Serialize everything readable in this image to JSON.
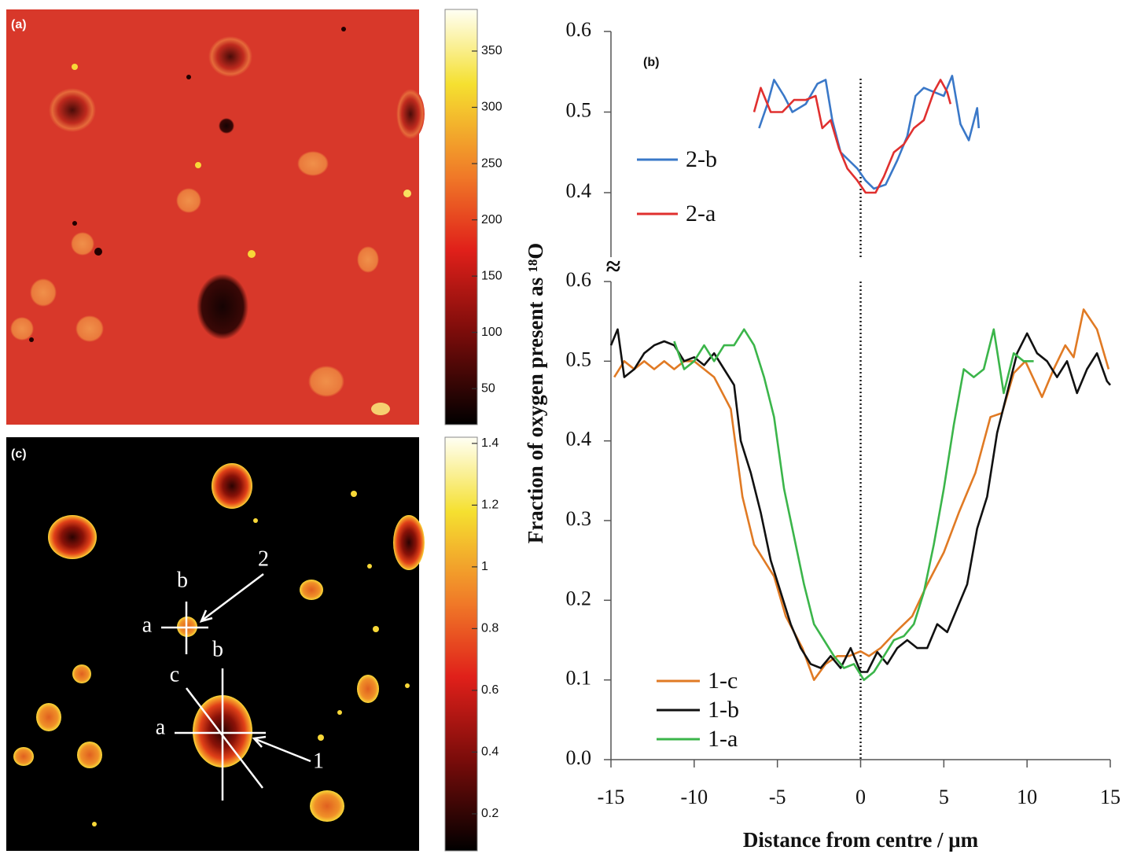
{
  "chart_data": [
    {
      "type": "image",
      "panel_label": "(a)",
      "colorbar": {
        "clim": [
          18,
          387
        ],
        "ticks": [
          50,
          100,
          150,
          200,
          250,
          300,
          350
        ]
      }
    },
    {
      "type": "image",
      "panel_label": "(c)",
      "colorbar": {
        "clim": [
          0.08,
          1.42
        ],
        "ticks": [
          0.2,
          0.4,
          0.6,
          0.8,
          1,
          1.2,
          1.4
        ]
      },
      "annotations": [
        "b",
        "2",
        "a",
        "b",
        "c",
        "a",
        "1"
      ]
    },
    {
      "type": "line",
      "panel_label": "(b)",
      "break_mark": "≈",
      "xlim": [
        -15,
        15
      ],
      "ylim": [
        0.32,
        0.6
      ],
      "yticks": [
        0.4,
        0.5,
        0.6
      ],
      "vline": 0,
      "series": [
        {
          "name": "2-b",
          "color": "#3a78c8",
          "x": [
            -6.1,
            -5.6,
            -5.2,
            -4.6,
            -4.1,
            -3.3,
            -2.6,
            -2.1,
            -1.7,
            -1.2,
            -0.7,
            -0.2,
            0.3,
            0.8,
            1.5,
            2.2,
            2.8,
            3.3,
            3.8,
            4.4,
            5.0,
            5.5,
            6.0,
            6.5,
            7.0,
            7.1
          ],
          "values": [
            0.48,
            0.51,
            0.54,
            0.52,
            0.5,
            0.51,
            0.535,
            0.54,
            0.49,
            0.45,
            0.44,
            0.43,
            0.415,
            0.405,
            0.41,
            0.44,
            0.47,
            0.52,
            0.53,
            0.525,
            0.52,
            0.545,
            0.485,
            0.465,
            0.505,
            0.48
          ]
        },
        {
          "name": "2-a",
          "color": "#e0302f",
          "x": [
            -6.4,
            -6.0,
            -5.4,
            -4.7,
            -4.0,
            -3.3,
            -2.7,
            -2.3,
            -1.8,
            -1.3,
            -0.8,
            -0.2,
            0.3,
            0.9,
            1.4,
            2.0,
            2.6,
            3.2,
            3.8,
            4.4,
            4.8,
            5.2,
            5.4
          ],
          "values": [
            0.5,
            0.53,
            0.5,
            0.5,
            0.515,
            0.515,
            0.52,
            0.48,
            0.49,
            0.455,
            0.43,
            0.415,
            0.4,
            0.4,
            0.42,
            0.45,
            0.46,
            0.48,
            0.49,
            0.525,
            0.54,
            0.525,
            0.51
          ]
        }
      ]
    },
    {
      "type": "line",
      "xlabel": "Distance from centre / μm",
      "ylabel": "Fraction of oxygen present as ¹⁸O",
      "xlim": [
        -15,
        15
      ],
      "xticks": [
        -15,
        -10,
        -5,
        0,
        5,
        10,
        15
      ],
      "ylim": [
        0,
        0.6
      ],
      "yticks": [
        {
          "value": 0,
          "label": "0.0"
        },
        0.1,
        0.2,
        0.3,
        0.4,
        0.5,
        0.6
      ],
      "vline": 0,
      "series": [
        {
          "name": "1-c",
          "color": "#e07a24",
          "x": [
            -14.8,
            -14.2,
            -13.6,
            -13.0,
            -12.4,
            -11.8,
            -11.2,
            -10.6,
            -10.0,
            -9.4,
            -8.8,
            -7.8,
            -7.1,
            -6.4,
            -5.2,
            -4.5,
            -3.5,
            -2.8,
            -2.1,
            -1.4,
            -0.7,
            0.0,
            0.5,
            1.2,
            2.1,
            3.1,
            4.0,
            5.0,
            5.9,
            6.9,
            7.8,
            8.5,
            9.2,
            9.9,
            10.9,
            11.6,
            12.3,
            12.8,
            13.4,
            14.2,
            14.9
          ],
          "values": [
            0.48,
            0.5,
            0.49,
            0.5,
            0.49,
            0.5,
            0.49,
            0.5,
            0.5,
            0.49,
            0.48,
            0.44,
            0.33,
            0.27,
            0.23,
            0.18,
            0.14,
            0.1,
            0.12,
            0.13,
            0.13,
            0.136,
            0.13,
            0.14,
            0.16,
            0.18,
            0.22,
            0.26,
            0.31,
            0.36,
            0.43,
            0.435,
            0.485,
            0.5,
            0.455,
            0.49,
            0.52,
            0.505,
            0.565,
            0.54,
            0.49
          ]
        },
        {
          "name": "1-b",
          "color": "#111111",
          "x": [
            -15.0,
            -14.6,
            -14.2,
            -13.6,
            -13.0,
            -12.4,
            -11.8,
            -11.2,
            -10.6,
            -10.0,
            -9.4,
            -8.8,
            -8.2,
            -7.6,
            -7.2,
            -6.6,
            -6.0,
            -5.4,
            -4.8,
            -4.2,
            -3.6,
            -3.0,
            -2.4,
            -1.8,
            -1.2,
            -0.6,
            0.0,
            0.4,
            1.0,
            1.6,
            2.2,
            2.8,
            3.4,
            4.0,
            4.6,
            5.2,
            5.8,
            6.4,
            7.0,
            7.6,
            8.2,
            8.8,
            9.4,
            10.0,
            10.6,
            11.2,
            11.8,
            12.4,
            13.0,
            13.6,
            14.2,
            14.8,
            15.0
          ],
          "values": [
            0.52,
            0.54,
            0.48,
            0.49,
            0.51,
            0.52,
            0.525,
            0.52,
            0.5,
            0.505,
            0.495,
            0.51,
            0.49,
            0.47,
            0.4,
            0.36,
            0.31,
            0.25,
            0.21,
            0.17,
            0.14,
            0.12,
            0.115,
            0.13,
            0.115,
            0.14,
            0.11,
            0.11,
            0.135,
            0.12,
            0.14,
            0.15,
            0.14,
            0.14,
            0.17,
            0.16,
            0.19,
            0.22,
            0.29,
            0.33,
            0.41,
            0.46,
            0.51,
            0.535,
            0.51,
            0.5,
            0.48,
            0.5,
            0.46,
            0.49,
            0.51,
            0.475,
            0.47
          ]
        },
        {
          "name": "1-a",
          "color": "#3bb54a",
          "x": [
            -11.2,
            -10.6,
            -10.0,
            -9.4,
            -8.8,
            -8.2,
            -7.6,
            -7.0,
            -6.4,
            -5.8,
            -5.2,
            -4.6,
            -4.0,
            -3.4,
            -2.8,
            -2.2,
            -1.6,
            -1.0,
            -0.4,
            0.2,
            0.8,
            1.4,
            2.0,
            2.6,
            3.2,
            3.8,
            4.4,
            5.0,
            5.6,
            6.2,
            6.8,
            7.4,
            8.0,
            8.6,
            9.2,
            9.8,
            10.4
          ],
          "values": [
            0.525,
            0.49,
            0.5,
            0.52,
            0.5,
            0.52,
            0.52,
            0.54,
            0.52,
            0.48,
            0.43,
            0.34,
            0.28,
            0.22,
            0.17,
            0.15,
            0.13,
            0.115,
            0.12,
            0.1,
            0.11,
            0.13,
            0.15,
            0.155,
            0.17,
            0.21,
            0.27,
            0.34,
            0.42,
            0.49,
            0.48,
            0.49,
            0.54,
            0.46,
            0.51,
            0.5,
            0.5
          ]
        }
      ]
    }
  ]
}
